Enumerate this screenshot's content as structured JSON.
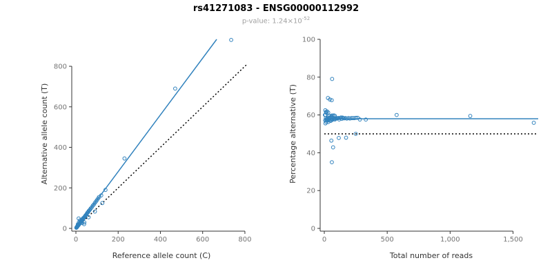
{
  "title": "rs41271083 - ENSG00000112992",
  "subtitle": {
    "prefix": "p-value: 1.24×10",
    "exponent": "-52"
  },
  "colors": {
    "accent": "#3182bd",
    "black": "#000000",
    "axis": "#333333",
    "tick_label": "#737373",
    "axis_title": "#333333"
  },
  "chart_data": [
    {
      "type": "scatter",
      "name": "allele-count-scatter",
      "xlabel": "Reference allele count (C)",
      "ylabel": "Alternative allele count (T)",
      "xlim": [
        0,
        810
      ],
      "ylim": [
        0,
        933
      ],
      "xticks": [
        0,
        200,
        400,
        600,
        800
      ],
      "yticks": [
        0,
        200,
        400,
        600,
        800
      ],
      "grid": false,
      "legend": "none",
      "lines": [
        {
          "name": "fit-line",
          "kind": "slope",
          "slope": 1.4,
          "intercept": 0,
          "style": "solid",
          "color": "accent"
        },
        {
          "name": "identity-line",
          "kind": "slope",
          "slope": 1.0,
          "intercept": 0,
          "style": "dotted",
          "color": "black"
        }
      ],
      "points": [
        [
          2,
          3
        ],
        [
          3,
          4
        ],
        [
          3,
          5
        ],
        [
          4,
          5
        ],
        [
          4,
          6
        ],
        [
          5,
          7
        ],
        [
          5,
          8
        ],
        [
          6,
          8
        ],
        [
          7,
          9
        ],
        [
          7,
          11
        ],
        [
          8,
          11
        ],
        [
          8,
          13
        ],
        [
          9,
          12
        ],
        [
          9,
          20
        ],
        [
          10,
          14
        ],
        [
          11,
          15
        ],
        [
          12,
          16
        ],
        [
          12,
          19
        ],
        [
          13,
          49
        ],
        [
          14,
          18
        ],
        [
          14,
          30
        ],
        [
          15,
          21
        ],
        [
          16,
          22
        ],
        [
          17,
          25
        ],
        [
          18,
          24
        ],
        [
          19,
          27
        ],
        [
          19,
          40
        ],
        [
          20,
          28
        ],
        [
          21,
          30
        ],
        [
          22,
          29
        ],
        [
          23,
          34
        ],
        [
          24,
          33
        ],
        [
          25,
          36
        ],
        [
          26,
          35
        ],
        [
          27,
          40
        ],
        [
          28,
          38
        ],
        [
          30,
          26
        ],
        [
          30,
          42
        ],
        [
          31,
          46
        ],
        [
          33,
          45
        ],
        [
          34,
          50
        ],
        [
          36,
          49
        ],
        [
          38,
          53
        ],
        [
          39,
          21
        ],
        [
          40,
          30
        ],
        [
          41,
          57
        ],
        [
          43,
          60
        ],
        [
          45,
          63
        ],
        [
          47,
          66
        ],
        [
          50,
          68
        ],
        [
          52,
          73
        ],
        [
          55,
          78
        ],
        [
          58,
          80
        ],
        [
          60,
          55
        ],
        [
          60,
          85
        ],
        [
          63,
          88
        ],
        [
          66,
          92
        ],
        [
          70,
          98
        ],
        [
          75,
          104
        ],
        [
          80,
          112
        ],
        [
          85,
          118
        ],
        [
          90,
          83
        ],
        [
          90,
          126
        ],
        [
          95,
          133
        ],
        [
          100,
          140
        ],
        [
          105,
          148
        ],
        [
          110,
          155
        ],
        [
          120,
          163
        ],
        [
          125,
          125
        ],
        [
          140,
          190
        ],
        [
          230,
          345
        ],
        [
          470,
          690
        ],
        [
          735,
          930
        ]
      ]
    },
    {
      "type": "scatter",
      "name": "percentage-scatter",
      "xlabel": "Total number of reads",
      "ylabel": "Percentage alternative (T)",
      "xlim": [
        0,
        1700
      ],
      "ylim": [
        0,
        100
      ],
      "xticks": [
        0,
        500,
        1000,
        1500
      ],
      "xtick_labels": [
        "0",
        "500",
        "1,000",
        "1,500"
      ],
      "yticks": [
        0,
        20,
        40,
        60,
        80,
        100
      ],
      "grid": false,
      "legend": "none",
      "lines": [
        {
          "name": "mean-line",
          "kind": "hline",
          "y": 58,
          "style": "solid",
          "color": "accent"
        },
        {
          "name": "null-line",
          "kind": "hline",
          "y": 50,
          "style": "dotted",
          "color": "black"
        }
      ],
      "points_from": "sum_percentage",
      "points_note": "x = C+T, y = 100*T/(C+T), derived from allele-count-scatter points"
    }
  ]
}
